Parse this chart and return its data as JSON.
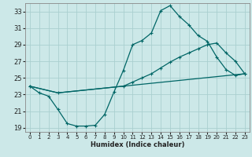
{
  "xlabel": "Humidex (Indice chaleur)",
  "bg_color": "#cce8e8",
  "line_color": "#006666",
  "grid_color": "#aacfcf",
  "xlim": [
    -0.5,
    23.5
  ],
  "ylim": [
    18.5,
    34.0
  ],
  "xticks": [
    0,
    1,
    2,
    3,
    4,
    5,
    6,
    7,
    8,
    9,
    10,
    11,
    12,
    13,
    14,
    15,
    16,
    17,
    18,
    19,
    20,
    21,
    22,
    23
  ],
  "yticks": [
    19,
    21,
    23,
    25,
    27,
    29,
    31,
    33
  ],
  "line1_x": [
    0,
    1,
    2,
    3,
    4,
    5,
    6,
    7,
    8,
    9,
    10,
    11,
    12,
    13,
    14,
    15,
    16,
    17,
    18,
    19,
    20,
    21,
    22,
    23
  ],
  "line1_y": [
    24.0,
    23.2,
    22.8,
    21.2,
    19.5,
    19.2,
    19.2,
    19.3,
    20.6,
    23.3,
    25.9,
    29.0,
    29.5,
    30.4,
    33.1,
    33.7,
    32.4,
    31.4,
    30.1,
    29.4,
    27.5,
    26.0,
    25.3,
    25.5
  ],
  "line2_x": [
    0,
    3,
    23
  ],
  "line2_y": [
    24.0,
    23.2,
    25.5
  ],
  "line3_x": [
    0,
    3,
    10,
    11,
    12,
    13,
    14,
    15,
    16,
    17,
    18,
    19,
    20,
    21,
    22,
    23
  ],
  "line3_y": [
    24.0,
    23.2,
    24.0,
    24.5,
    25.0,
    25.5,
    26.2,
    26.9,
    27.5,
    28.0,
    28.5,
    29.0,
    29.2,
    28.0,
    27.0,
    25.5
  ]
}
